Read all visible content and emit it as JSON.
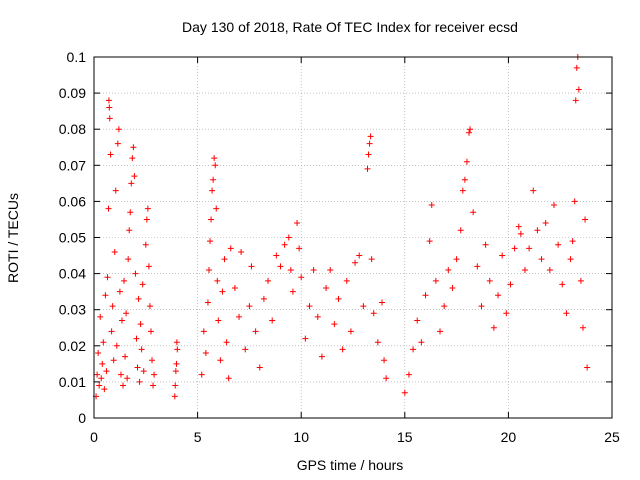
{
  "chart_data": {
    "type": "scatter",
    "title": "Day 130 of 2018, Rate Of TEC Index for receiver ecsd",
    "xlabel": "GPS time / hours",
    "ylabel": "ROTI / TECUs",
    "xlim": [
      0,
      25
    ],
    "ylim": [
      0,
      0.1
    ],
    "x_ticks": [
      0,
      5,
      10,
      15,
      20,
      25
    ],
    "y_ticks": [
      0,
      0.01,
      0.02,
      0.03,
      0.04,
      0.05,
      0.06,
      0.07,
      0.08,
      0.09,
      0.1
    ],
    "grid": true,
    "marker": "plus",
    "series": [
      {
        "color": "#ff0000",
        "points": [
          [
            0.1,
            0.006
          ],
          [
            0.15,
            0.012
          ],
          [
            0.2,
            0.018
          ],
          [
            0.25,
            0.009
          ],
          [
            0.3,
            0.028
          ],
          [
            0.35,
            0.011
          ],
          [
            0.4,
            0.015
          ],
          [
            0.45,
            0.021
          ],
          [
            0.5,
            0.008
          ],
          [
            0.55,
            0.034
          ],
          [
            0.6,
            0.013
          ],
          [
            0.65,
            0.039
          ],
          [
            0.7,
            0.058
          ],
          [
            0.72,
            0.088
          ],
          [
            0.74,
            0.086
          ],
          [
            0.76,
            0.083
          ],
          [
            0.8,
            0.073
          ],
          [
            0.85,
            0.024
          ],
          [
            0.9,
            0.031
          ],
          [
            0.95,
            0.016
          ],
          [
            1.0,
            0.046
          ],
          [
            1.05,
            0.063
          ],
          [
            1.1,
            0.02
          ],
          [
            1.15,
            0.076
          ],
          [
            1.2,
            0.08
          ],
          [
            1.25,
            0.035
          ],
          [
            1.3,
            0.012
          ],
          [
            1.35,
            0.027
          ],
          [
            1.4,
            0.009
          ],
          [
            1.45,
            0.038
          ],
          [
            1.5,
            0.017
          ],
          [
            1.55,
            0.029
          ],
          [
            1.6,
            0.011
          ],
          [
            1.65,
            0.044
          ],
          [
            1.7,
            0.052
          ],
          [
            1.75,
            0.057
          ],
          [
            1.8,
            0.065
          ],
          [
            1.85,
            0.072
          ],
          [
            1.9,
            0.075
          ],
          [
            1.95,
            0.067
          ],
          [
            2.0,
            0.04
          ],
          [
            2.05,
            0.022
          ],
          [
            2.1,
            0.014
          ],
          [
            2.15,
            0.033
          ],
          [
            2.2,
            0.01
          ],
          [
            2.25,
            0.026
          ],
          [
            2.3,
            0.019
          ],
          [
            2.35,
            0.037
          ],
          [
            2.4,
            0.013
          ],
          [
            2.5,
            0.048
          ],
          [
            2.55,
            0.055
          ],
          [
            2.6,
            0.058
          ],
          [
            2.65,
            0.042
          ],
          [
            2.7,
            0.031
          ],
          [
            2.75,
            0.024
          ],
          [
            2.8,
            0.016
          ],
          [
            2.85,
            0.009
          ],
          [
            2.9,
            0.012
          ],
          [
            3.9,
            0.006
          ],
          [
            3.92,
            0.009
          ],
          [
            3.95,
            0.013
          ],
          [
            3.98,
            0.015
          ],
          [
            4.0,
            0.021
          ],
          [
            4.02,
            0.019
          ],
          [
            5.2,
            0.012
          ],
          [
            5.3,
            0.024
          ],
          [
            5.4,
            0.018
          ],
          [
            5.5,
            0.032
          ],
          [
            5.55,
            0.041
          ],
          [
            5.6,
            0.049
          ],
          [
            5.65,
            0.055
          ],
          [
            5.7,
            0.063
          ],
          [
            5.75,
            0.066
          ],
          [
            5.8,
            0.072
          ],
          [
            5.85,
            0.07
          ],
          [
            5.9,
            0.058
          ],
          [
            5.95,
            0.038
          ],
          [
            6.0,
            0.027
          ],
          [
            6.1,
            0.016
          ],
          [
            6.2,
            0.035
          ],
          [
            6.3,
            0.044
          ],
          [
            6.4,
            0.021
          ],
          [
            6.5,
            0.011
          ],
          [
            6.6,
            0.047
          ],
          [
            6.8,
            0.036
          ],
          [
            7.0,
            0.028
          ],
          [
            7.1,
            0.046
          ],
          [
            7.3,
            0.019
          ],
          [
            7.5,
            0.031
          ],
          [
            7.6,
            0.042
          ],
          [
            7.8,
            0.024
          ],
          [
            8.0,
            0.014
          ],
          [
            8.2,
            0.033
          ],
          [
            8.4,
            0.038
          ],
          [
            8.6,
            0.027
          ],
          [
            8.8,
            0.045
          ],
          [
            9.0,
            0.042
          ],
          [
            9.2,
            0.048
          ],
          [
            9.4,
            0.05
          ],
          [
            9.5,
            0.041
          ],
          [
            9.6,
            0.035
          ],
          [
            9.8,
            0.054
          ],
          [
            9.9,
            0.047
          ],
          [
            10.0,
            0.039
          ],
          [
            10.2,
            0.022
          ],
          [
            10.4,
            0.031
          ],
          [
            10.6,
            0.041
          ],
          [
            10.8,
            0.028
          ],
          [
            11.0,
            0.017
          ],
          [
            11.2,
            0.036
          ],
          [
            11.4,
            0.041
          ],
          [
            11.6,
            0.026
          ],
          [
            11.8,
            0.033
          ],
          [
            12.0,
            0.019
          ],
          [
            12.2,
            0.038
          ],
          [
            12.4,
            0.024
          ],
          [
            12.6,
            0.043
          ],
          [
            12.8,
            0.045
          ],
          [
            13.0,
            0.031
          ],
          [
            13.2,
            0.069
          ],
          [
            13.25,
            0.073
          ],
          [
            13.3,
            0.076
          ],
          [
            13.35,
            0.078
          ],
          [
            13.4,
            0.044
          ],
          [
            13.5,
            0.029
          ],
          [
            13.7,
            0.021
          ],
          [
            13.9,
            0.032
          ],
          [
            14.0,
            0.016
          ],
          [
            14.1,
            0.011
          ],
          [
            15.0,
            0.007
          ],
          [
            15.2,
            0.012
          ],
          [
            15.4,
            0.019
          ],
          [
            15.6,
            0.027
          ],
          [
            15.8,
            0.021
          ],
          [
            16.0,
            0.034
          ],
          [
            16.2,
            0.049
          ],
          [
            16.3,
            0.059
          ],
          [
            16.5,
            0.038
          ],
          [
            16.7,
            0.024
          ],
          [
            16.9,
            0.031
          ],
          [
            17.1,
            0.041
          ],
          [
            17.3,
            0.036
          ],
          [
            17.5,
            0.044
          ],
          [
            17.7,
            0.052
          ],
          [
            17.8,
            0.063
          ],
          [
            17.9,
            0.066
          ],
          [
            18.0,
            0.071
          ],
          [
            18.1,
            0.079
          ],
          [
            18.15,
            0.08
          ],
          [
            18.3,
            0.057
          ],
          [
            18.5,
            0.042
          ],
          [
            18.7,
            0.031
          ],
          [
            18.9,
            0.048
          ],
          [
            19.1,
            0.038
          ],
          [
            19.3,
            0.025
          ],
          [
            19.5,
            0.034
          ],
          [
            19.7,
            0.045
          ],
          [
            19.9,
            0.029
          ],
          [
            20.1,
            0.037
          ],
          [
            20.3,
            0.047
          ],
          [
            20.5,
            0.053
          ],
          [
            20.6,
            0.051
          ],
          [
            20.8,
            0.041
          ],
          [
            21.0,
            0.047
          ],
          [
            21.2,
            0.063
          ],
          [
            21.4,
            0.052
          ],
          [
            21.6,
            0.044
          ],
          [
            21.8,
            0.054
          ],
          [
            22.0,
            0.041
          ],
          [
            22.2,
            0.059
          ],
          [
            22.4,
            0.048
          ],
          [
            22.6,
            0.037
          ],
          [
            22.8,
            0.029
          ],
          [
            23.0,
            0.044
          ],
          [
            23.1,
            0.049
          ],
          [
            23.2,
            0.06
          ],
          [
            23.25,
            0.088
          ],
          [
            23.3,
            0.097
          ],
          [
            23.35,
            0.1
          ],
          [
            23.4,
            0.091
          ],
          [
            23.5,
            0.038
          ],
          [
            23.6,
            0.025
          ],
          [
            23.7,
            0.055
          ],
          [
            23.8,
            0.014
          ]
        ]
      }
    ]
  }
}
